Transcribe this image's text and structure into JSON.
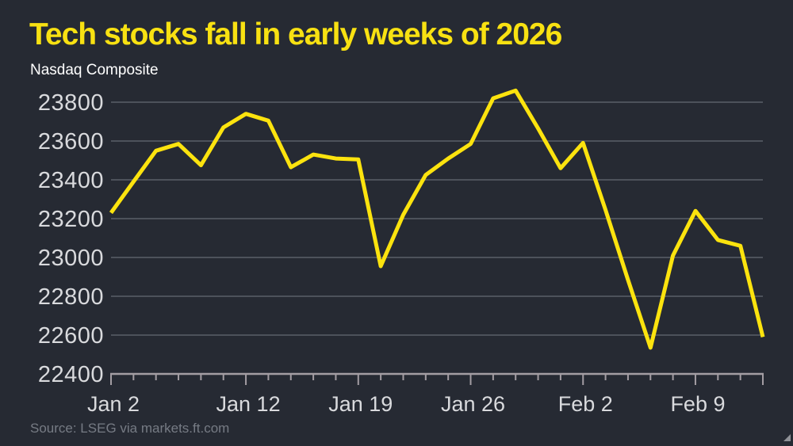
{
  "colors": {
    "background": "#262a33",
    "title_yellow": "#f8e112",
    "line_yellow": "#fce30e",
    "grid_gray": "#5a5f69",
    "axis_gray": "#a39da3",
    "tick_label_gray": "#d9dadd",
    "source_gray": "#767b84",
    "subtitle_white": "#ffffff",
    "corner_mark_gray": "#8f9197"
  },
  "chart_data": {
    "type": "line",
    "title": "Tech stocks fall in early weeks of 2026",
    "subtitle": "Nasdaq Composite",
    "source": "Source: LSEG via markets.ft.com",
    "x": [
      "Jan 2",
      "Jan 5",
      "Jan 6",
      "Jan 7",
      "Jan 8",
      "Jan 9",
      "Jan 12",
      "Jan 13",
      "Jan 14",
      "Jan 15",
      "Jan 16",
      "Jan 19",
      "Jan 20",
      "Jan 21",
      "Jan 22",
      "Jan 23",
      "Jan 26",
      "Jan 27",
      "Jan 28",
      "Jan 29",
      "Jan 30",
      "Feb 2",
      "Feb 3",
      "Feb 4",
      "Feb 5",
      "Feb 6",
      "Feb 9",
      "Feb 10",
      "Feb 11",
      "Feb 12"
    ],
    "series": [
      {
        "name": "Nasdaq Composite",
        "values": [
          23230,
          23390,
          23550,
          23585,
          23475,
          23670,
          23740,
          23705,
          23465,
          23530,
          23510,
          23505,
          22955,
          23220,
          23425,
          23510,
          23585,
          23820,
          23860,
          23665,
          23460,
          23590,
          23245,
          22885,
          22535,
          23010,
          23240,
          23090,
          23060,
          22590
        ]
      }
    ],
    "ylim": [
      22400,
      23800
    ],
    "y_ticks": [
      22400,
      22600,
      22800,
      23000,
      23200,
      23400,
      23600,
      23800
    ],
    "x_major_ticks": [
      {
        "index": 0,
        "label": "Jan 2"
      },
      {
        "index": 6,
        "label": "Jan 12"
      },
      {
        "index": 11,
        "label": "Jan 19"
      },
      {
        "index": 16,
        "label": "Jan 26"
      },
      {
        "index": 21,
        "label": "Feb 2"
      },
      {
        "index": 26,
        "label": "Feb 9"
      }
    ],
    "grid": "horizontal",
    "legend": "none"
  }
}
